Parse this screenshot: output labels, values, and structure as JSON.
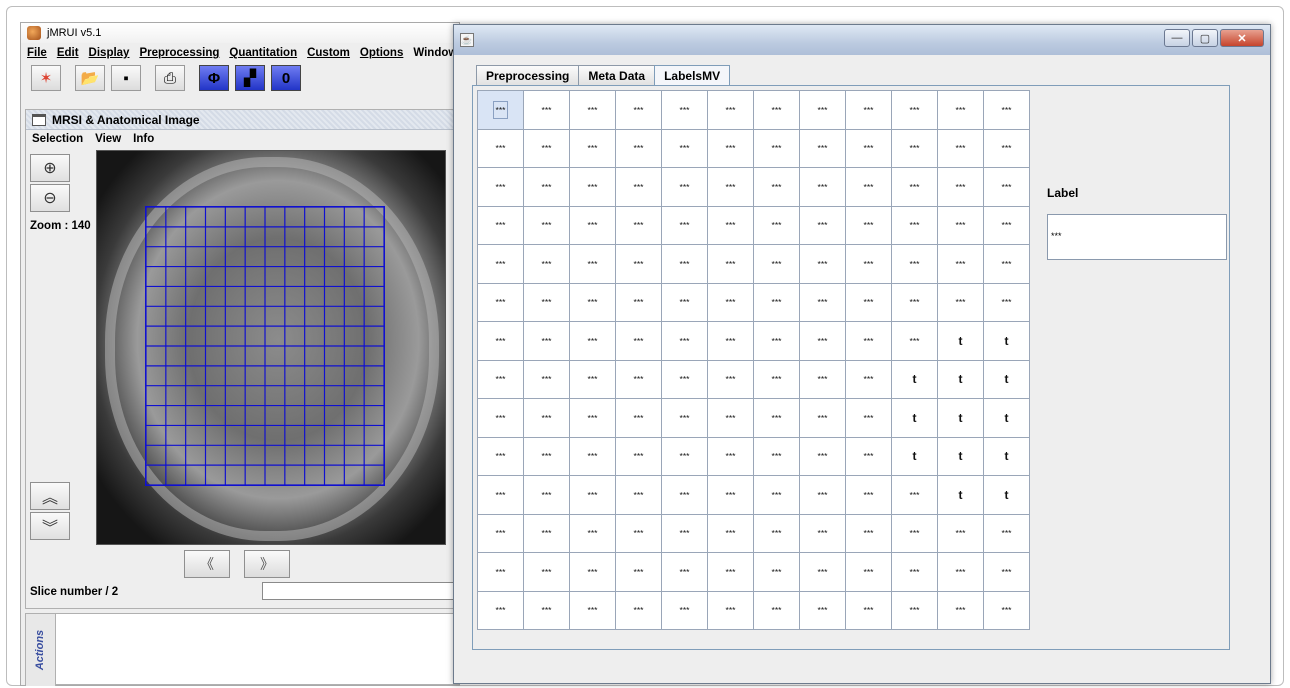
{
  "left_window": {
    "title": "jMRUI v5.1",
    "menu": [
      "File",
      "Edit",
      "Display",
      "Preprocessing",
      "Quantitation",
      "Custom",
      "Options",
      "Window"
    ],
    "toolbar_icons": [
      "wand-icon",
      "open-folder-icon",
      "save-icon",
      "print-icon",
      "phi-icon",
      "chart-icon",
      "zero-icon"
    ]
  },
  "mri_window": {
    "title": "MRSI & Anatomical Image",
    "menu": [
      "Selection",
      "View",
      "Info"
    ],
    "zoom_label": "Zoom : 140",
    "slice_label": "Slice number / 2",
    "grid_rows": 14,
    "grid_cols": 12
  },
  "actions_label": "Actions",
  "dialog": {
    "tabs": [
      "Preprocessing",
      "Meta Data",
      "LabelsMV"
    ],
    "active_tab": 2,
    "label_title": "Label",
    "label_value": "***",
    "rows": [
      [
        "***",
        "***",
        "***",
        "***",
        "***",
        "***",
        "***",
        "***",
        "***",
        "***",
        "***",
        "***"
      ],
      [
        "***",
        "***",
        "***",
        "***",
        "***",
        "***",
        "***",
        "***",
        "***",
        "***",
        "***",
        "***"
      ],
      [
        "***",
        "***",
        "***",
        "***",
        "***",
        "***",
        "***",
        "***",
        "***",
        "***",
        "***",
        "***"
      ],
      [
        "***",
        "***",
        "***",
        "***",
        "***",
        "***",
        "***",
        "***",
        "***",
        "***",
        "***",
        "***"
      ],
      [
        "***",
        "***",
        "***",
        "***",
        "***",
        "***",
        "***",
        "***",
        "***",
        "***",
        "***",
        "***"
      ],
      [
        "***",
        "***",
        "***",
        "***",
        "***",
        "***",
        "***",
        "***",
        "***",
        "***",
        "***",
        "***"
      ],
      [
        "***",
        "***",
        "***",
        "***",
        "***",
        "***",
        "***",
        "***",
        "***",
        "***",
        "t",
        "t"
      ],
      [
        "***",
        "***",
        "***",
        "***",
        "***",
        "***",
        "***",
        "***",
        "***",
        "t",
        "t",
        "t"
      ],
      [
        "***",
        "***",
        "***",
        "***",
        "***",
        "***",
        "***",
        "***",
        "***",
        "t",
        "t",
        "t"
      ],
      [
        "***",
        "***",
        "***",
        "***",
        "***",
        "***",
        "***",
        "***",
        "***",
        "t",
        "t",
        "t"
      ],
      [
        "***",
        "***",
        "***",
        "***",
        "***",
        "***",
        "***",
        "***",
        "***",
        "***",
        "t",
        "t"
      ],
      [
        "***",
        "***",
        "***",
        "***",
        "***",
        "***",
        "***",
        "***",
        "***",
        "***",
        "***",
        "***"
      ],
      [
        "***",
        "***",
        "***",
        "***",
        "***",
        "***",
        "***",
        "***",
        "***",
        "***",
        "***",
        "***"
      ],
      [
        "***",
        "***",
        "***",
        "***",
        "***",
        "***",
        "***",
        "***",
        "***",
        "***",
        "***",
        "***"
      ]
    ]
  }
}
